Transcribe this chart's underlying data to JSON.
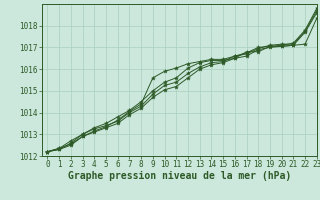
{
  "background_color": "#cce8dc",
  "grid_color": "#aacfbf",
  "line_color": "#2d5a27",
  "marker_color": "#2d5a27",
  "xlabel": "Graphe pression niveau de la mer (hPa)",
  "xlabel_fontsize": 7.0,
  "tick_fontsize": 5.5,
  "xlim": [
    -0.5,
    23
  ],
  "ylim": [
    1012,
    1019
  ],
  "yticks": [
    1012,
    1013,
    1014,
    1015,
    1016,
    1017,
    1018
  ],
  "xticks": [
    0,
    1,
    2,
    3,
    4,
    5,
    6,
    7,
    8,
    9,
    10,
    11,
    12,
    13,
    14,
    15,
    16,
    17,
    18,
    19,
    20,
    21,
    22,
    23
  ],
  "series": [
    [
      1012.2,
      1012.3,
      1012.5,
      1012.9,
      1013.1,
      1013.3,
      1013.5,
      1013.9,
      1014.2,
      1014.7,
      1015.05,
      1015.2,
      1015.6,
      1016.0,
      1016.2,
      1016.3,
      1016.5,
      1016.6,
      1016.9,
      1017.0,
      1017.05,
      1017.1,
      1017.7,
      1018.6
    ],
    [
      1012.2,
      1012.3,
      1012.6,
      1013.0,
      1013.3,
      1013.5,
      1013.8,
      1014.1,
      1014.5,
      1015.0,
      1015.4,
      1015.6,
      1016.05,
      1016.3,
      1016.4,
      1016.4,
      1016.5,
      1016.8,
      1016.8,
      1017.05,
      1017.1,
      1017.2,
      1017.8,
      1018.8
    ],
    [
      1012.2,
      1012.35,
      1012.7,
      1013.0,
      1013.25,
      1013.4,
      1013.6,
      1014.0,
      1014.3,
      1014.85,
      1015.25,
      1015.4,
      1015.8,
      1016.1,
      1016.3,
      1016.35,
      1016.6,
      1016.7,
      1016.95,
      1017.1,
      1017.15,
      1017.15,
      1017.75,
      1018.7
    ],
    [
      1012.2,
      1012.35,
      1012.55,
      1012.9,
      1013.15,
      1013.35,
      1013.65,
      1014.05,
      1014.4,
      1015.6,
      1015.9,
      1016.05,
      1016.25,
      1016.35,
      1016.45,
      1016.45,
      1016.6,
      1016.75,
      1017.0,
      1017.05,
      1017.05,
      1017.1,
      1017.15,
      1018.35
    ]
  ]
}
